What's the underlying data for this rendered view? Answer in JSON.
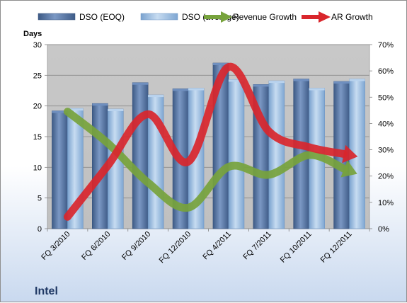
{
  "chart_data": {
    "type": "bar",
    "title": "",
    "company_label": "Intel",
    "ylabel_left": "Days",
    "categories": [
      "FQ 3/2010",
      "FQ 6/2010",
      "FQ 9/2010",
      "FQ 12/2010",
      "FQ 4/2011",
      "FQ 7/2011",
      "FQ 10/2011",
      "FQ 12/2011"
    ],
    "left_axis": {
      "min": 0,
      "max": 30,
      "ticks": [
        "0",
        "5",
        "10",
        "15",
        "20",
        "25",
        "30"
      ]
    },
    "right_axis": {
      "min": 0,
      "max": 70,
      "ticks": [
        "0%",
        "10%",
        "20%",
        "30%",
        "40%",
        "50%",
        "60%",
        "70%"
      ]
    },
    "bar_series": [
      {
        "name": "DSO (EOQ)",
        "color": "#4f6d99",
        "values": [
          19.2,
          20.4,
          23.8,
          22.8,
          27.0,
          23.5,
          24.4,
          24.0
        ]
      },
      {
        "name": "DSO (average)",
        "color": "#9dc3e6",
        "values": [
          19.6,
          19.5,
          21.8,
          22.9,
          24.3,
          24.1,
          22.9,
          24.4
        ]
      }
    ],
    "line_series": [
      {
        "name": "Revenue Growth",
        "color": "#77a33c",
        "axis": "right",
        "values": [
          44.5,
          32.5,
          17.5,
          8.0,
          23.5,
          20.5,
          28.0,
          22.0
        ]
      },
      {
        "name": "AR Growth",
        "color": "#d9262c",
        "axis": "right",
        "values": [
          4.5,
          24.0,
          43.5,
          25.5,
          61.5,
          37.0,
          31.0,
          28.0
        ]
      }
    ],
    "grid": true,
    "legend_position": "top"
  }
}
